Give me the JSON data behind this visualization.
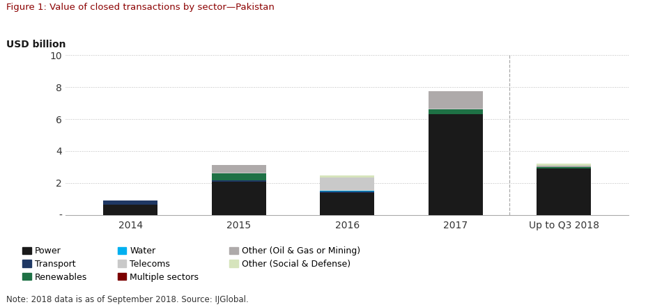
{
  "title": "Figure 1: Value of closed transactions by sector—Pakistan",
  "ylabel": "USD billion",
  "note": "Note: 2018 data is as of September 2018. Source: IJGlobal.",
  "categories": [
    "2014",
    "2015",
    "2016",
    "2017",
    "Up to Q3 2018"
  ],
  "ylim": [
    0,
    10
  ],
  "yticks": [
    0,
    2,
    4,
    6,
    8,
    10
  ],
  "ytick_labels": [
    "-",
    "2",
    "4",
    "6",
    "8",
    "10"
  ],
  "sectors": {
    "Power": [
      0.62,
      2.1,
      1.4,
      6.3,
      2.92
    ],
    "Transport": [
      0.28,
      0.07,
      0.05,
      0.0,
      0.0
    ],
    "Renewables": [
      0.0,
      0.42,
      0.0,
      0.3,
      0.08
    ],
    "Water": [
      0.0,
      0.0,
      0.06,
      0.0,
      0.0
    ],
    "Telecoms": [
      0.0,
      0.05,
      0.85,
      0.05,
      0.0
    ],
    "Multiple sectors": [
      0.0,
      0.0,
      0.0,
      0.0,
      0.0
    ],
    "Other (Oil & Gas or Mining)": [
      0.0,
      0.5,
      0.0,
      1.1,
      0.1
    ],
    "Other (Social & Defense)": [
      0.0,
      0.0,
      0.1,
      0.0,
      0.1
    ]
  },
  "colors": {
    "Power": "#1a1a1a",
    "Transport": "#1f3864",
    "Renewables": "#1e7145",
    "Water": "#00b0f0",
    "Telecoms": "#c9c9c9",
    "Multiple sectors": "#7b0000",
    "Other (Oil & Gas or Mining)": "#aeaaaa",
    "Other (Social & Defense)": "#d6e4bc"
  },
  "legend_order": [
    "Power",
    "Transport",
    "Renewables",
    "Water",
    "Telecoms",
    "Multiple sectors",
    "Other (Oil & Gas or Mining)",
    "Other (Social & Defense)"
  ],
  "title_color": "#8b0000",
  "bar_width": 0.5,
  "figsize": [
    9.4,
    4.41
  ],
  "dpi": 100
}
